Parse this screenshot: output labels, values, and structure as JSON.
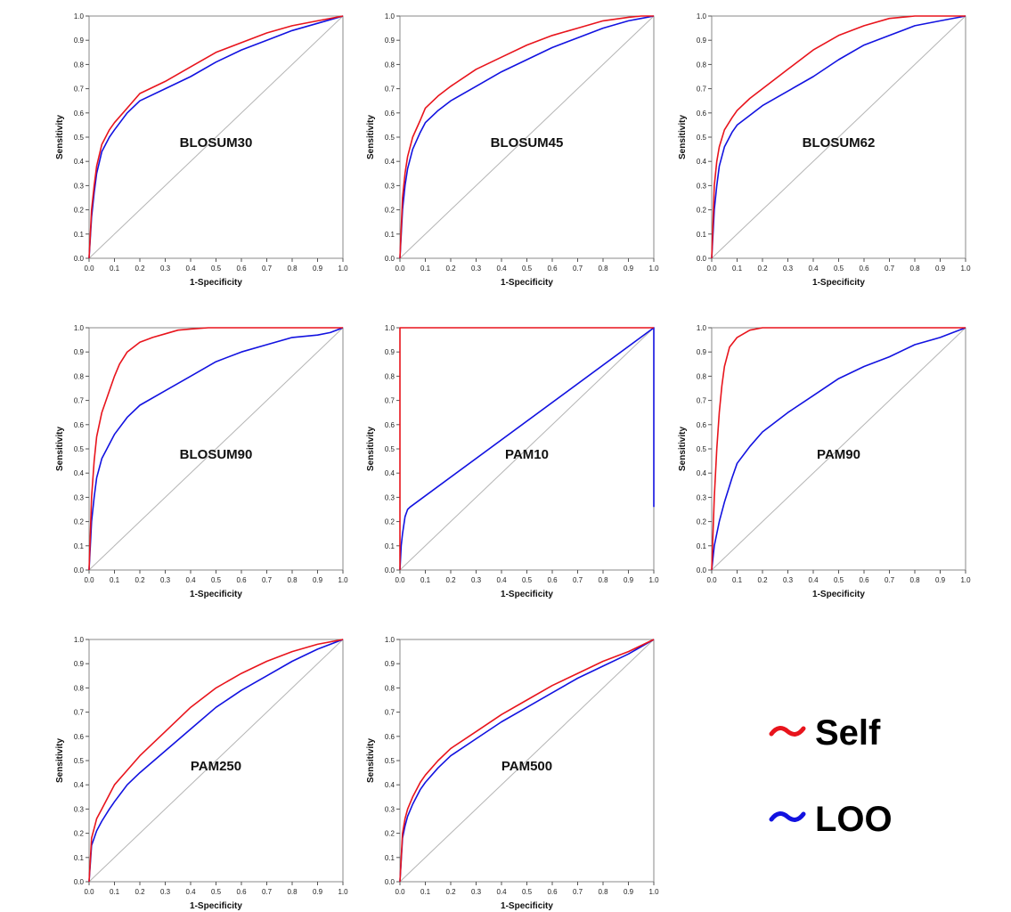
{
  "colors": {
    "self": "#e8141c",
    "loo": "#1212e0",
    "diagonal": "#b4b4b4",
    "frame": "#8a8a8a"
  },
  "legend": [
    {
      "key": "self",
      "label": "Self",
      "icon": "tilde-icon"
    },
    {
      "key": "loo",
      "label": "LOO",
      "icon": "tilde-icon"
    }
  ],
  "chart_data": [
    {
      "type": "line",
      "title": "BLOSUM30",
      "xlabel": "1-Specificity",
      "ylabel": "Sensitivity",
      "xlim": [
        0,
        1
      ],
      "ylim": [
        0,
        1
      ],
      "xticks": [
        "0.0",
        "0.1",
        "0.2",
        "0.3",
        "0.4",
        "0.5",
        "0.6",
        "0.7",
        "0.8",
        "0.9",
        "1.0"
      ],
      "yticks": [
        "0.0",
        "0.1",
        "0.2",
        "0.3",
        "0.4",
        "0.5",
        "0.6",
        "0.7",
        "0.8",
        "0.9",
        "1.0"
      ],
      "series": [
        {
          "key": "self",
          "x": [
            0,
            0.01,
            0.02,
            0.03,
            0.05,
            0.08,
            0.1,
            0.15,
            0.2,
            0.3,
            0.4,
            0.5,
            0.6,
            0.7,
            0.8,
            0.9,
            1.0
          ],
          "y": [
            0,
            0.2,
            0.3,
            0.38,
            0.47,
            0.53,
            0.56,
            0.62,
            0.68,
            0.73,
            0.79,
            0.85,
            0.89,
            0.93,
            0.96,
            0.98,
            1.0
          ]
        },
        {
          "key": "loo",
          "x": [
            0,
            0.01,
            0.02,
            0.03,
            0.05,
            0.08,
            0.1,
            0.15,
            0.2,
            0.3,
            0.4,
            0.5,
            0.6,
            0.7,
            0.8,
            0.9,
            1.0
          ],
          "y": [
            0,
            0.17,
            0.27,
            0.35,
            0.44,
            0.5,
            0.53,
            0.6,
            0.65,
            0.7,
            0.75,
            0.81,
            0.86,
            0.9,
            0.94,
            0.97,
            1.0
          ]
        },
        {
          "key": "diagonal",
          "x": [
            0,
            1
          ],
          "y": [
            0,
            1
          ]
        }
      ]
    },
    {
      "type": "line",
      "title": "BLOSUM45",
      "xlabel": "1-Specificity",
      "ylabel": "Sensitivity",
      "xlim": [
        0,
        1
      ],
      "ylim": [
        0,
        1
      ],
      "xticks": [
        "0.0",
        "0.1",
        "0.2",
        "0.3",
        "0.4",
        "0.5",
        "0.6",
        "0.7",
        "0.8",
        "0.9",
        "1.0"
      ],
      "yticks": [
        "0.0",
        "0.1",
        "0.2",
        "0.3",
        "0.4",
        "0.5",
        "0.6",
        "0.7",
        "0.8",
        "0.9",
        "1.0"
      ],
      "series": [
        {
          "key": "self",
          "x": [
            0,
            0.01,
            0.02,
            0.03,
            0.05,
            0.08,
            0.1,
            0.15,
            0.2,
            0.3,
            0.4,
            0.5,
            0.6,
            0.7,
            0.8,
            0.9,
            0.95,
            1.0
          ],
          "y": [
            0,
            0.25,
            0.35,
            0.42,
            0.5,
            0.57,
            0.62,
            0.67,
            0.71,
            0.78,
            0.83,
            0.88,
            0.92,
            0.95,
            0.98,
            0.995,
            1.0,
            1.0
          ]
        },
        {
          "key": "loo",
          "x": [
            0,
            0.01,
            0.02,
            0.03,
            0.05,
            0.08,
            0.1,
            0.15,
            0.2,
            0.3,
            0.4,
            0.5,
            0.6,
            0.7,
            0.8,
            0.9,
            0.95,
            1.0
          ],
          "y": [
            0,
            0.2,
            0.3,
            0.37,
            0.45,
            0.52,
            0.56,
            0.61,
            0.65,
            0.71,
            0.77,
            0.82,
            0.87,
            0.91,
            0.95,
            0.98,
            0.99,
            1.0
          ]
        },
        {
          "key": "diagonal",
          "x": [
            0,
            1
          ],
          "y": [
            0,
            1
          ]
        }
      ]
    },
    {
      "type": "line",
      "title": "BLOSUM62",
      "xlabel": "1-Specificity",
      "ylabel": "Sensitivity",
      "xlim": [
        0,
        1
      ],
      "ylim": [
        0,
        1
      ],
      "xticks": [
        "0.0",
        "0.1",
        "0.2",
        "0.3",
        "0.4",
        "0.5",
        "0.6",
        "0.7",
        "0.8",
        "0.9",
        "1.0"
      ],
      "yticks": [
        "0.0",
        "0.1",
        "0.2",
        "0.3",
        "0.4",
        "0.5",
        "0.6",
        "0.7",
        "0.8",
        "0.9",
        "1.0"
      ],
      "series": [
        {
          "key": "self",
          "x": [
            0,
            0.01,
            0.02,
            0.03,
            0.05,
            0.08,
            0.1,
            0.15,
            0.2,
            0.3,
            0.4,
            0.5,
            0.6,
            0.7,
            0.8,
            0.9,
            1.0
          ],
          "y": [
            0,
            0.3,
            0.4,
            0.46,
            0.53,
            0.58,
            0.61,
            0.66,
            0.7,
            0.78,
            0.86,
            0.92,
            0.96,
            0.99,
            1.0,
            1.0,
            1.0
          ]
        },
        {
          "key": "loo",
          "x": [
            0,
            0.01,
            0.02,
            0.03,
            0.05,
            0.08,
            0.1,
            0.15,
            0.2,
            0.3,
            0.4,
            0.5,
            0.6,
            0.7,
            0.8,
            0.9,
            1.0
          ],
          "y": [
            0,
            0.2,
            0.3,
            0.38,
            0.46,
            0.52,
            0.55,
            0.59,
            0.63,
            0.69,
            0.75,
            0.82,
            0.88,
            0.92,
            0.96,
            0.98,
            1.0
          ]
        },
        {
          "key": "diagonal",
          "x": [
            0,
            1
          ],
          "y": [
            0,
            1
          ]
        }
      ]
    },
    {
      "type": "line",
      "title": "BLOSUM90",
      "xlabel": "1-Specificity",
      "ylabel": "Sensitivity",
      "xlim": [
        0,
        1
      ],
      "ylim": [
        0,
        1
      ],
      "xticks": [
        "0.0",
        "0.1",
        "0.2",
        "0.3",
        "0.4",
        "0.5",
        "0.6",
        "0.7",
        "0.8",
        "0.9",
        "1.0"
      ],
      "yticks": [
        "0.0",
        "0.1",
        "0.2",
        "0.3",
        "0.4",
        "0.5",
        "0.6",
        "0.7",
        "0.8",
        "0.9",
        "1.0"
      ],
      "series": [
        {
          "key": "self",
          "x": [
            0,
            0.01,
            0.02,
            0.03,
            0.05,
            0.08,
            0.1,
            0.12,
            0.15,
            0.2,
            0.25,
            0.3,
            0.35,
            0.4,
            0.47,
            1.0
          ],
          "y": [
            0,
            0.3,
            0.45,
            0.55,
            0.65,
            0.74,
            0.8,
            0.85,
            0.9,
            0.94,
            0.96,
            0.975,
            0.99,
            0.995,
            1.0,
            1.0
          ]
        },
        {
          "key": "loo",
          "x": [
            0,
            0.01,
            0.02,
            0.03,
            0.05,
            0.08,
            0.1,
            0.15,
            0.2,
            0.3,
            0.4,
            0.5,
            0.6,
            0.7,
            0.8,
            0.9,
            0.95,
            1.0
          ],
          "y": [
            0,
            0.2,
            0.3,
            0.38,
            0.46,
            0.52,
            0.56,
            0.63,
            0.68,
            0.74,
            0.8,
            0.86,
            0.9,
            0.93,
            0.96,
            0.97,
            0.98,
            1.0
          ]
        },
        {
          "key": "diagonal",
          "x": [
            0,
            1
          ],
          "y": [
            0,
            1
          ]
        }
      ]
    },
    {
      "type": "line",
      "title": "PAM10",
      "xlabel": "1-Specificity",
      "ylabel": "Sensitivity",
      "xlim": [
        0,
        1
      ],
      "ylim": [
        0,
        1
      ],
      "xticks": [
        "0.0",
        "0.1",
        "0.2",
        "0.3",
        "0.4",
        "0.5",
        "0.6",
        "0.7",
        "0.8",
        "0.9",
        "1.0"
      ],
      "yticks": [
        "0.0",
        "0.1",
        "0.2",
        "0.3",
        "0.4",
        "0.5",
        "0.6",
        "0.7",
        "0.8",
        "0.9",
        "1.0"
      ],
      "series": [
        {
          "key": "self",
          "x": [
            0,
            0,
            1.0
          ],
          "y": [
            0,
            1.0,
            1.0
          ]
        },
        {
          "key": "loo",
          "x": [
            0,
            0.005,
            0.01,
            0.02,
            0.03,
            0.04,
            1.0,
            1.0
          ],
          "y": [
            0,
            0.1,
            0.15,
            0.22,
            0.25,
            0.26,
            1.0,
            0.26
          ]
        },
        {
          "key": "diagonal",
          "x": [
            0,
            1
          ],
          "y": [
            0,
            1
          ]
        }
      ]
    },
    {
      "type": "line",
      "title": "PAM90",
      "xlabel": "1-Specificity",
      "ylabel": "Sensitivity",
      "xlim": [
        0,
        1
      ],
      "ylim": [
        0,
        1
      ],
      "xticks": [
        "0.0",
        "0.1",
        "0.2",
        "0.3",
        "0.4",
        "0.5",
        "0.6",
        "0.7",
        "0.8",
        "0.9",
        "1.0"
      ],
      "yticks": [
        "0.0",
        "0.1",
        "0.2",
        "0.3",
        "0.4",
        "0.5",
        "0.6",
        "0.7",
        "0.8",
        "0.9",
        "1.0"
      ],
      "series": [
        {
          "key": "self",
          "x": [
            0,
            0.01,
            0.02,
            0.03,
            0.04,
            0.05,
            0.07,
            0.1,
            0.15,
            0.2,
            0.25,
            1.0
          ],
          "y": [
            0,
            0.3,
            0.5,
            0.65,
            0.76,
            0.84,
            0.92,
            0.96,
            0.99,
            1.0,
            1.0,
            1.0
          ]
        },
        {
          "key": "loo",
          "x": [
            0,
            0.01,
            0.02,
            0.03,
            0.05,
            0.08,
            0.1,
            0.15,
            0.2,
            0.3,
            0.4,
            0.5,
            0.6,
            0.7,
            0.8,
            0.9,
            0.95,
            1.0
          ],
          "y": [
            0,
            0.1,
            0.15,
            0.2,
            0.28,
            0.38,
            0.44,
            0.51,
            0.57,
            0.65,
            0.72,
            0.79,
            0.84,
            0.88,
            0.93,
            0.96,
            0.98,
            1.0
          ]
        },
        {
          "key": "diagonal",
          "x": [
            0,
            1
          ],
          "y": [
            0,
            1
          ]
        }
      ]
    },
    {
      "type": "line",
      "title": "PAM250",
      "xlabel": "1-Specificity",
      "ylabel": "Sensitivity",
      "xlim": [
        0,
        1
      ],
      "ylim": [
        0,
        1
      ],
      "xticks": [
        "0.0",
        "0.1",
        "0.2",
        "0.3",
        "0.4",
        "0.5",
        "0.6",
        "0.7",
        "0.8",
        "0.9",
        "1.0"
      ],
      "yticks": [
        "0.0",
        "0.1",
        "0.2",
        "0.3",
        "0.4",
        "0.5",
        "0.6",
        "0.7",
        "0.8",
        "0.9",
        "1.0"
      ],
      "series": [
        {
          "key": "self",
          "x": [
            0,
            0.01,
            0.02,
            0.03,
            0.05,
            0.08,
            0.1,
            0.15,
            0.2,
            0.3,
            0.4,
            0.5,
            0.6,
            0.7,
            0.8,
            0.9,
            1.0
          ],
          "y": [
            0,
            0.18,
            0.22,
            0.26,
            0.3,
            0.36,
            0.4,
            0.46,
            0.52,
            0.62,
            0.72,
            0.8,
            0.86,
            0.91,
            0.95,
            0.98,
            1.0
          ]
        },
        {
          "key": "loo",
          "x": [
            0,
            0.01,
            0.02,
            0.03,
            0.05,
            0.08,
            0.1,
            0.15,
            0.2,
            0.3,
            0.4,
            0.5,
            0.6,
            0.7,
            0.8,
            0.9,
            1.0
          ],
          "y": [
            0,
            0.15,
            0.18,
            0.21,
            0.25,
            0.3,
            0.33,
            0.4,
            0.45,
            0.54,
            0.63,
            0.72,
            0.79,
            0.85,
            0.91,
            0.96,
            1.0
          ]
        },
        {
          "key": "diagonal",
          "x": [
            0,
            1
          ],
          "y": [
            0,
            1
          ]
        }
      ]
    },
    {
      "type": "line",
      "title": "PAM500",
      "xlabel": "1-Specificity",
      "ylabel": "Sensitivity",
      "xlim": [
        0,
        1
      ],
      "ylim": [
        0,
        1
      ],
      "xticks": [
        "0.0",
        "0.1",
        "0.2",
        "0.3",
        "0.4",
        "0.5",
        "0.6",
        "0.7",
        "0.8",
        "0.9",
        "1.0"
      ],
      "yticks": [
        "0.0",
        "0.1",
        "0.2",
        "0.3",
        "0.4",
        "0.5",
        "0.6",
        "0.7",
        "0.8",
        "0.9",
        "1.0"
      ],
      "series": [
        {
          "key": "self",
          "x": [
            0,
            0.01,
            0.02,
            0.03,
            0.05,
            0.08,
            0.1,
            0.15,
            0.2,
            0.3,
            0.4,
            0.5,
            0.6,
            0.7,
            0.8,
            0.9,
            1.0
          ],
          "y": [
            0,
            0.2,
            0.26,
            0.3,
            0.35,
            0.41,
            0.44,
            0.5,
            0.55,
            0.62,
            0.69,
            0.75,
            0.81,
            0.86,
            0.91,
            0.95,
            1.0
          ]
        },
        {
          "key": "loo",
          "x": [
            0,
            0.01,
            0.02,
            0.03,
            0.05,
            0.08,
            0.1,
            0.15,
            0.2,
            0.3,
            0.4,
            0.5,
            0.6,
            0.7,
            0.8,
            0.9,
            1.0
          ],
          "y": [
            0,
            0.18,
            0.23,
            0.27,
            0.32,
            0.38,
            0.41,
            0.47,
            0.52,
            0.59,
            0.66,
            0.72,
            0.78,
            0.84,
            0.89,
            0.94,
            1.0
          ]
        },
        {
          "key": "diagonal",
          "x": [
            0,
            1
          ],
          "y": [
            0,
            1
          ]
        }
      ]
    }
  ]
}
